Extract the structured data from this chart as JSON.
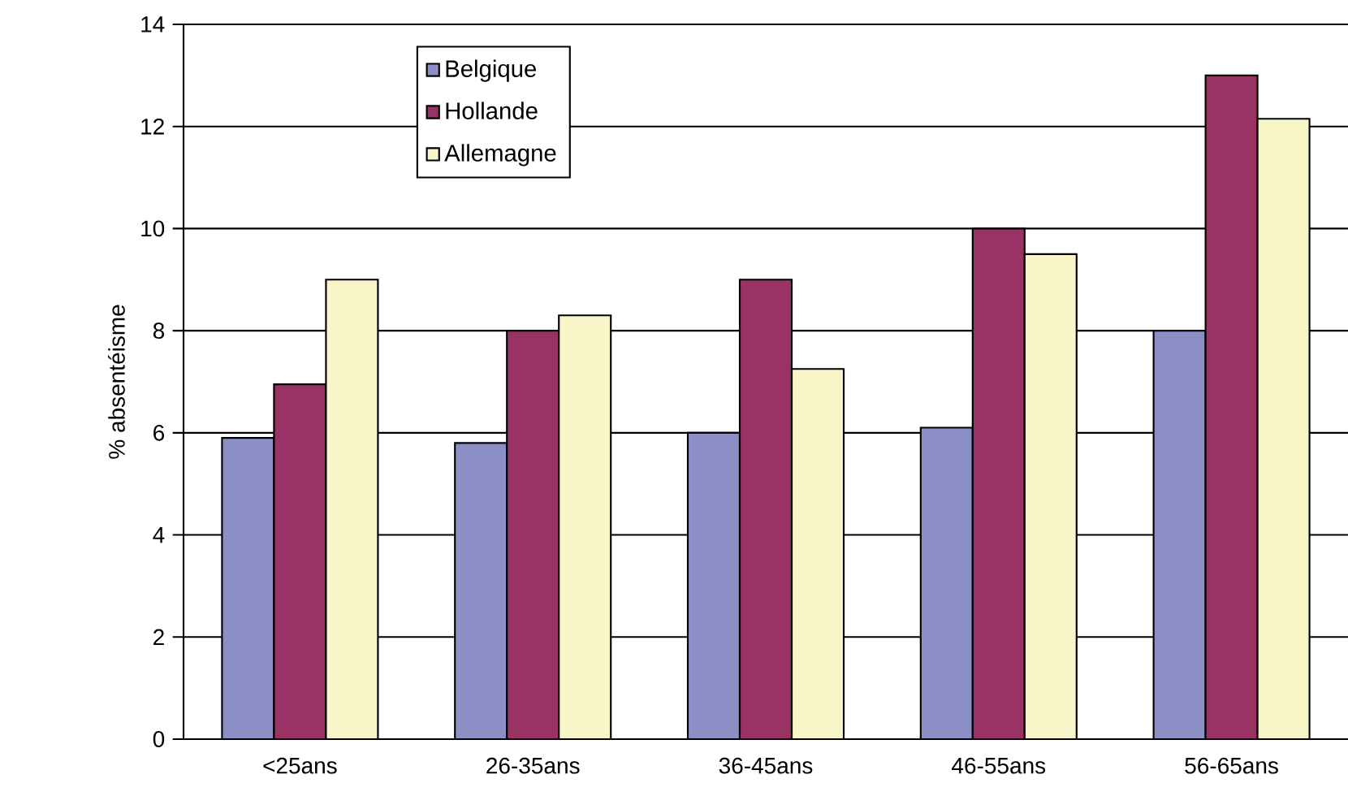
{
  "chart_data": {
    "type": "bar",
    "ylabel": "% absentéisme",
    "categories": [
      "<25ans",
      "26-35ans",
      "36-45ans",
      "46-55ans",
      "56-65ans"
    ],
    "series": [
      {
        "name": "Belgique",
        "color": "#8b8fc6",
        "values": [
          5.9,
          5.8,
          6.0,
          6.1,
          8.0
        ]
      },
      {
        "name": "Hollande",
        "color": "#993366",
        "values": [
          6.95,
          8.0,
          9.0,
          10.0,
          13.0
        ]
      },
      {
        "name": "Allemagne",
        "color": "#f8f5c8",
        "values": [
          9.0,
          8.3,
          7.25,
          9.5,
          12.15
        ]
      }
    ],
    "ylim": [
      0,
      14
    ],
    "yticks": [
      0,
      2,
      4,
      6,
      8,
      10,
      12,
      14
    ],
    "grid": "y",
    "legend": "top left"
  }
}
